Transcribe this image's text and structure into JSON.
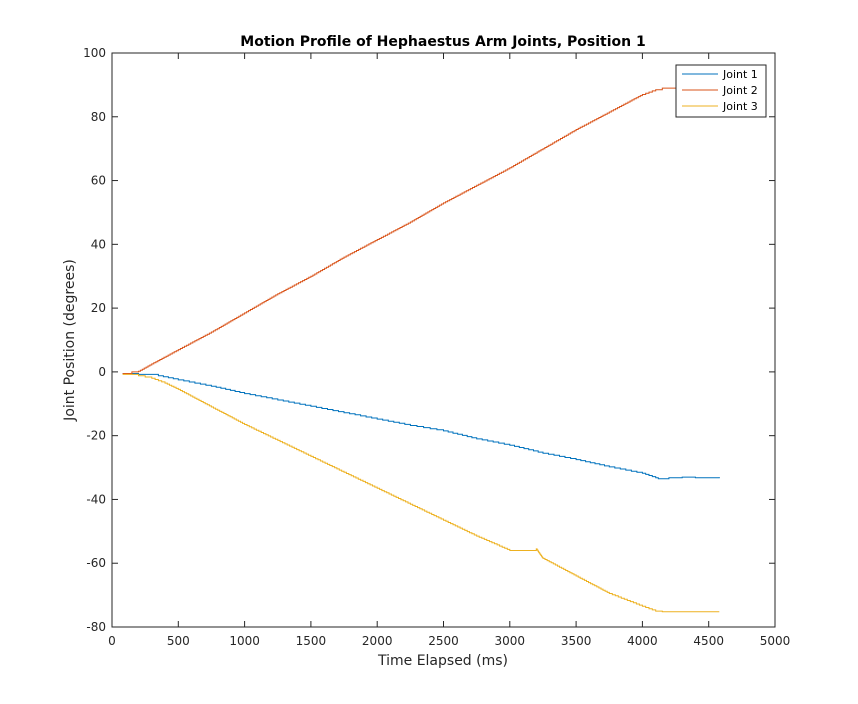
{
  "chart_data": {
    "type": "line",
    "title": "Motion Profile of Hephaestus Arm Joints, Position 1",
    "xlabel": "Time Elapsed (ms)",
    "ylabel": "Joint Position (degrees)",
    "xlim": [
      0,
      5000
    ],
    "ylim": [
      -80,
      100
    ],
    "xticks": [
      "0",
      "500",
      "1000",
      "1500",
      "2000",
      "2500",
      "3000",
      "3500",
      "4000",
      "4500",
      "5000"
    ],
    "yticks": [
      "-80",
      "-60",
      "-40",
      "-20",
      "0",
      "20",
      "40",
      "60",
      "80",
      "100"
    ],
    "grid": false,
    "legend_position": "top-right",
    "series": [
      {
        "name": "Joint 1",
        "color": "#0072BD",
        "x": [
          80,
          200,
          350,
          500,
          750,
          1000,
          1250,
          1500,
          1750,
          2000,
          2250,
          2500,
          2750,
          3000,
          3250,
          3500,
          3750,
          4000,
          4100,
          4120,
          4200,
          4300,
          4400,
          4580
        ],
        "y": [
          -0.5,
          -0.8,
          -1.2,
          -2.5,
          -4.5,
          -6.8,
          -8.8,
          -10.8,
          -12.8,
          -14.8,
          -16.8,
          -18.5,
          -21.0,
          -23.0,
          -25.5,
          -27.5,
          -29.8,
          -31.8,
          -33.2,
          -33.5,
          -33.2,
          -33.0,
          -33.2,
          -33.0
        ]
      },
      {
        "name": "Joint 2",
        "color": "#D95319",
        "x": [
          80,
          150,
          200,
          300,
          500,
          750,
          1000,
          1250,
          1500,
          1750,
          2000,
          2250,
          2500,
          2750,
          3000,
          3250,
          3500,
          3750,
          4000,
          4100,
          4150,
          4580
        ],
        "y": [
          -0.5,
          0.0,
          0.2,
          2.5,
          7.0,
          12.5,
          18.5,
          24.5,
          30.0,
          36.0,
          41.5,
          47.0,
          53.0,
          58.5,
          64.0,
          70.0,
          76.0,
          81.5,
          87.0,
          88.5,
          89.0,
          89.0
        ]
      },
      {
        "name": "Joint 3",
        "color": "#EDB120",
        "x": [
          80,
          200,
          300,
          400,
          500,
          750,
          1000,
          1250,
          1500,
          1750,
          2000,
          2250,
          2500,
          2750,
          3000,
          3200,
          3250,
          3500,
          3750,
          4000,
          4100,
          4150,
          4580
        ],
        "y": [
          -0.8,
          -1.2,
          -2.0,
          -3.5,
          -5.5,
          -11.0,
          -16.5,
          -21.5,
          -26.5,
          -31.5,
          -36.5,
          -41.5,
          -46.5,
          -51.5,
          -56.0,
          -55.5,
          -58.5,
          -64.0,
          -69.5,
          -73.5,
          -75.0,
          -75.2,
          -75.2
        ]
      }
    ]
  }
}
